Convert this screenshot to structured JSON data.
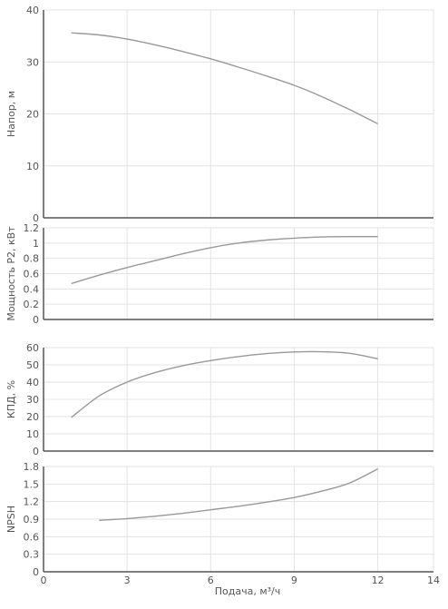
{
  "chart_data": [
    {
      "type": "line",
      "ylabel": "Напор, м",
      "xlim": [
        0,
        14
      ],
      "ylim": [
        0,
        40
      ],
      "yticks": [
        0,
        10,
        20,
        30,
        40
      ],
      "grid": true,
      "series": [
        {
          "x": [
            1,
            2,
            3,
            4,
            5,
            6,
            7,
            8,
            9,
            10,
            11,
            12
          ],
          "y": [
            35.6,
            35.2,
            34.4,
            33.3,
            32.0,
            30.6,
            29.0,
            27.3,
            25.5,
            23.3,
            20.8,
            18.1
          ]
        }
      ]
    },
    {
      "type": "line",
      "ylabel": "Мощность P2, кВт",
      "xlim": [
        0,
        14
      ],
      "ylim": [
        0,
        1.2
      ],
      "yticks": [
        "0",
        "0.2",
        "0.4",
        "0.6",
        "0.8",
        "1",
        "1.2"
      ],
      "grid": true,
      "series": [
        {
          "x": [
            1,
            2,
            3,
            4,
            5,
            6,
            7,
            8,
            9,
            10,
            11,
            12
          ],
          "y": [
            0.47,
            0.58,
            0.68,
            0.77,
            0.86,
            0.94,
            1.0,
            1.04,
            1.065,
            1.08,
            1.085,
            1.085
          ]
        }
      ]
    },
    {
      "type": "line",
      "ylabel": "КПД, %",
      "xlim": [
        0,
        14
      ],
      "ylim": [
        0,
        60
      ],
      "yticks": [
        0,
        10,
        20,
        30,
        40,
        50,
        60
      ],
      "grid": true,
      "series": [
        {
          "x": [
            1,
            2,
            3,
            4,
            5,
            6,
            7,
            8,
            9,
            10,
            11,
            12
          ],
          "y": [
            19.5,
            32.0,
            40.0,
            45.5,
            49.5,
            52.5,
            54.8,
            56.5,
            57.5,
            57.6,
            56.7,
            53.5
          ]
        }
      ]
    },
    {
      "type": "line",
      "ylabel": "NPSH",
      "xlabel": "Подача, м³/ч",
      "xlim": [
        0,
        14
      ],
      "ylim": [
        0,
        1.8
      ],
      "yticks": [
        "0",
        "0.3",
        "0.6",
        "0.9",
        "1.2",
        "1.5",
        "1.8"
      ],
      "xticks": [
        0,
        3,
        6,
        9,
        12,
        14
      ],
      "grid": true,
      "series": [
        {
          "x": [
            2,
            3,
            4,
            5,
            6,
            7,
            8,
            9,
            10,
            11,
            12
          ],
          "y": [
            0.88,
            0.91,
            0.95,
            1.0,
            1.06,
            1.12,
            1.19,
            1.27,
            1.38,
            1.52,
            1.76
          ]
        }
      ]
    }
  ]
}
